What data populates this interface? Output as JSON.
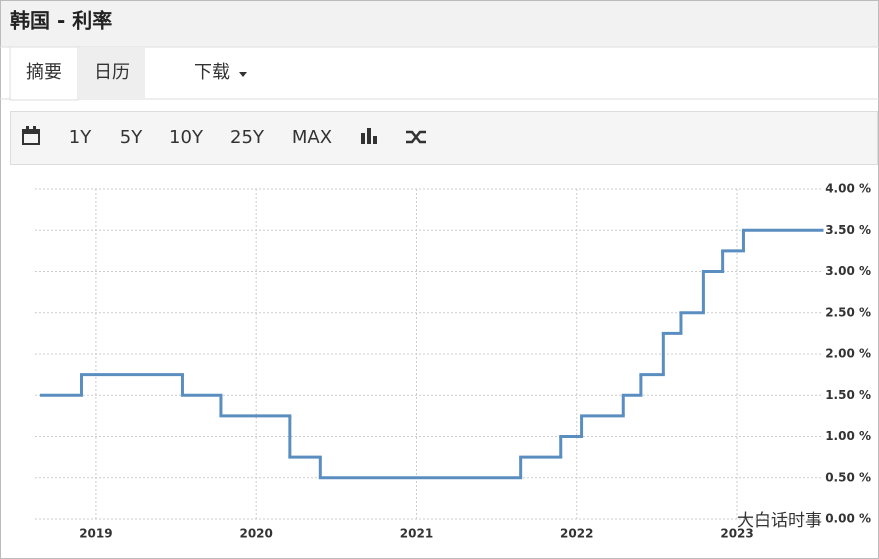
{
  "header": {
    "title": "韩国 - 利率"
  },
  "tabs": [
    "摘要",
    "日历",
    "下载"
  ],
  "toolbar": [
    "1Y",
    "5Y",
    "10Y",
    "25Y",
    "MAX"
  ],
  "watermark": "大白话时事",
  "chart_data": {
    "type": "line",
    "step": "post",
    "x": [
      2018.66,
      2018.91,
      2019.54,
      2019.78,
      2020.21,
      2020.4,
      2021.65,
      2021.9,
      2022.03,
      2022.29,
      2022.4,
      2022.54,
      2022.65,
      2022.79,
      2022.91,
      2023.04
    ],
    "series": [
      {
        "color": "#5b8ec0",
        "values": [
          1.5,
          1.75,
          1.5,
          1.25,
          0.75,
          0.5,
          0.75,
          1.0,
          1.25,
          1.5,
          1.75,
          2.25,
          2.5,
          3.0,
          3.25,
          3.5
        ]
      }
    ],
    "xlim": [
      2018.62,
      2023.53
    ],
    "xticks": [
      2019,
      2020,
      2021,
      2022,
      2023
    ],
    "ylim": [
      0,
      4
    ],
    "yticks": [
      {
        "value": 0,
        "label": "0.00 %"
      },
      {
        "value": 0.5,
        "label": "0.50 %"
      },
      {
        "value": 1,
        "label": "1.00 %"
      },
      {
        "value": 1.5,
        "label": "1.50 %"
      },
      {
        "value": 2,
        "label": "2.00 %"
      },
      {
        "value": 2.5,
        "label": "2.50 %"
      },
      {
        "value": 3,
        "label": "3.00 %"
      },
      {
        "value": 3.5,
        "label": "3.50 %"
      },
      {
        "value": 4,
        "label": "4.00 %"
      }
    ],
    "grid": true
  }
}
